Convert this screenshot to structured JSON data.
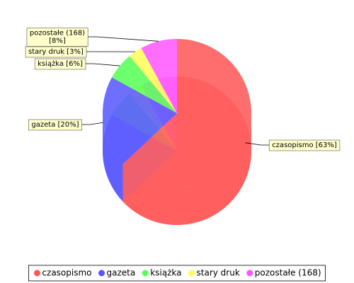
{
  "chart_data": {
    "type": "pie3d",
    "categories": [
      "czasopismo",
      "gazeta",
      "książka",
      "stary druk",
      "pozostałe (168)"
    ],
    "values": [
      63,
      20,
      6,
      3,
      8
    ],
    "value_labels": [
      "czasopismo [63%]",
      "gazeta [20%]",
      "książka [6%]",
      "stary druk [3%]",
      "pozostałe (168) [8%]"
    ],
    "colors": [
      "#ff5555",
      "#5555ff",
      "#55ff55",
      "#ffff55",
      "#ff55ff"
    ],
    "legend": "bottom"
  }
}
